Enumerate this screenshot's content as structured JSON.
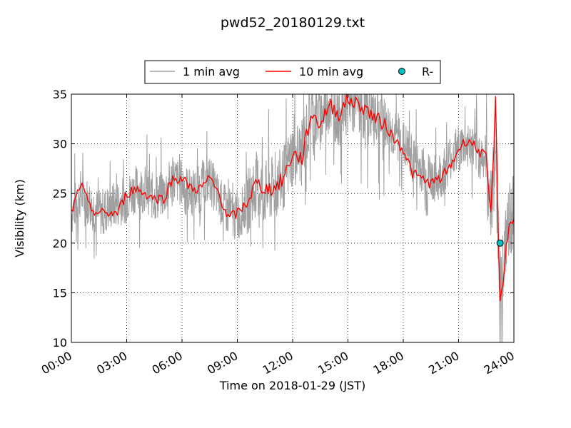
{
  "chart_data": {
    "type": "line",
    "title": "pwd52_20180129.txt",
    "xlabel": "Time on 2018-01-29 (JST)",
    "ylabel": "Visibility (km)",
    "xlim": [
      "2018-01-29 00:00",
      "2018-01-30 00:00"
    ],
    "ylim": [
      10,
      35
    ],
    "grid": true,
    "legend_position": "top-center, outside plot",
    "x_ticks": [
      "00:00",
      "03:00",
      "06:00",
      "09:00",
      "12:00",
      "15:00",
      "18:00",
      "21:00",
      "24:00"
    ],
    "y_ticks": [
      "10",
      "15",
      "20",
      "25",
      "30",
      "35"
    ],
    "series": [
      {
        "name": "1 min avg",
        "color": "#a0a0a0",
        "style": "line",
        "x": [
          "00:00",
          "00:30",
          "01:00",
          "01:30",
          "02:00",
          "02:30",
          "03:00",
          "03:30",
          "04:00",
          "04:30",
          "05:00",
          "05:30",
          "06:00",
          "06:30",
          "07:00",
          "07:30",
          "08:00",
          "08:30",
          "09:00",
          "09:30",
          "10:00",
          "10:30",
          "11:00",
          "11:30",
          "12:00",
          "12:30",
          "13:00",
          "13:30",
          "14:00",
          "14:30",
          "15:00",
          "15:30",
          "16:00",
          "16:30",
          "17:00",
          "17:30",
          "18:00",
          "18:30",
          "19:00",
          "19:30",
          "20:00",
          "20:30",
          "21:00",
          "21:30",
          "22:00",
          "22:30",
          "22:45",
          "23:00",
          "23:15",
          "23:30",
          "23:45",
          "24:00"
        ],
        "values": [
          23.0,
          25.0,
          24.0,
          23.0,
          23.5,
          24.0,
          24.5,
          25.5,
          25.5,
          24.5,
          25.0,
          26.5,
          26.0,
          25.0,
          25.5,
          26.5,
          24.5,
          23.0,
          22.5,
          24.0,
          26.0,
          25.0,
          25.5,
          26.5,
          29.0,
          29.0,
          33.0,
          32.5,
          34.5,
          33.0,
          34.5,
          34.0,
          33.5,
          33.0,
          32.0,
          31.0,
          30.0,
          28.5,
          27.5,
          26.5,
          26.5,
          28.5,
          29.5,
          30.0,
          29.0,
          28.5,
          24.0,
          29.0,
          15.5,
          19.0,
          22.0,
          23.5
        ],
        "min_max_range": [
          [
            18.0,
            27.5
          ],
          [
            12.0,
            35.0
          ]
        ]
      },
      {
        "name": "10 min avg",
        "color": "#ff0000",
        "style": "line",
        "x": [
          "00:00",
          "00:30",
          "01:00",
          "01:30",
          "02:00",
          "02:30",
          "03:00",
          "03:30",
          "04:00",
          "04:30",
          "05:00",
          "05:30",
          "06:00",
          "06:30",
          "07:00",
          "07:30",
          "08:00",
          "08:30",
          "09:00",
          "09:30",
          "10:00",
          "10:30",
          "11:00",
          "11:30",
          "12:00",
          "12:30",
          "13:00",
          "13:30",
          "14:00",
          "14:30",
          "15:00",
          "15:30",
          "16:00",
          "16:30",
          "17:00",
          "17:30",
          "18:00",
          "18:30",
          "19:00",
          "19:30",
          "20:00",
          "20:30",
          "21:00",
          "21:30",
          "22:00",
          "22:30",
          "22:45",
          "23:00",
          "23:15",
          "23:30",
          "23:45",
          "24:00"
        ],
        "values": [
          23.0,
          26.0,
          23.5,
          23.0,
          23.0,
          23.0,
          25.0,
          25.5,
          25.0,
          24.5,
          24.5,
          26.5,
          26.5,
          25.5,
          25.5,
          26.5,
          25.0,
          22.5,
          23.0,
          24.0,
          26.0,
          25.5,
          25.5,
          26.5,
          29.0,
          28.5,
          33.0,
          32.0,
          34.0,
          33.0,
          34.5,
          34.0,
          33.5,
          32.5,
          32.0,
          30.5,
          29.5,
          27.0,
          26.5,
          26.0,
          26.5,
          27.5,
          29.5,
          30.5,
          29.5,
          28.5,
          22.5,
          34.0,
          14.0,
          18.0,
          22.0,
          22.5
        ]
      },
      {
        "name": "R-",
        "color": "#00c0c0",
        "style": "marker",
        "x": [
          "23:15"
        ],
        "values": [
          20.0
        ]
      }
    ]
  }
}
